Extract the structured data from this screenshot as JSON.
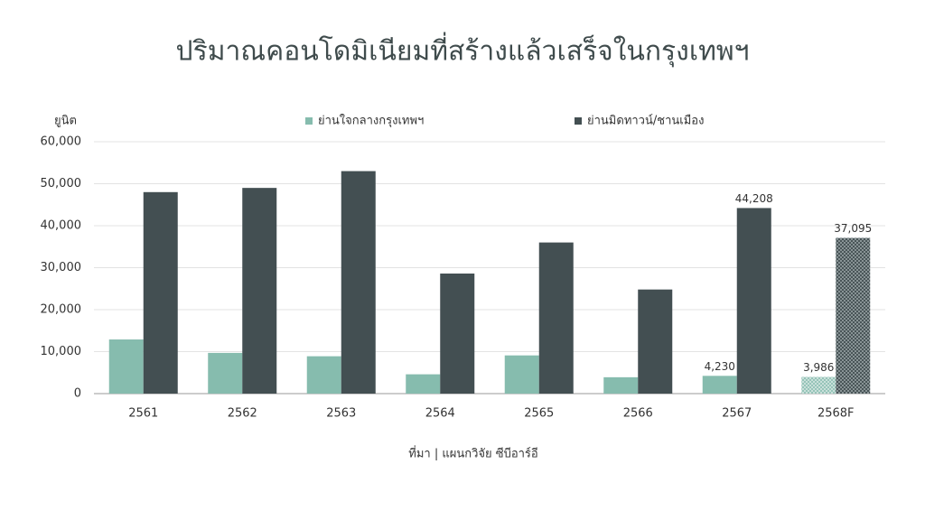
{
  "chart_data": {
    "type": "bar",
    "title": "ปริมาณคอนโดมิเนียมที่สร้างแล้วเสร็จในกรุงเทพฯ",
    "y_label": "ยูนิต",
    "source": "ที่มา | แผนกวิจัย ซีบีอาร์อี",
    "categories": [
      "2561",
      "2562",
      "2563",
      "2564",
      "2565",
      "2566",
      "2567",
      "2568F"
    ],
    "hatched": [
      false,
      false,
      false,
      false,
      false,
      false,
      false,
      true
    ],
    "series": [
      {
        "name": "ย่านใจกลางกรุงเทพฯ",
        "color": "#86bcae",
        "values": [
          12900,
          9700,
          8900,
          4600,
          9100,
          3900,
          4230,
          3986
        ],
        "value_labels": [
          null,
          null,
          null,
          null,
          null,
          null,
          "4,230",
          "3,986"
        ]
      },
      {
        "name": "ย่านมิดทาวน์/ชานเมือง",
        "color": "#434f52",
        "values": [
          48000,
          49000,
          53000,
          28600,
          36000,
          24800,
          44208,
          37095
        ],
        "value_labels": [
          null,
          null,
          null,
          null,
          null,
          null,
          "44,208",
          "37,095"
        ]
      }
    ],
    "ylim": [
      0,
      60000
    ],
    "yticks": [
      0,
      {
        "value": 10000,
        "label": "10,000"
      },
      {
        "value": 20000,
        "label": "20,000"
      },
      {
        "value": 30000,
        "label": "30,000"
      },
      {
        "value": 40000,
        "label": "40,000"
      },
      {
        "value": 50000,
        "label": "50,000"
      },
      {
        "value": 60000,
        "label": "60,000"
      }
    ],
    "grid": true
  }
}
